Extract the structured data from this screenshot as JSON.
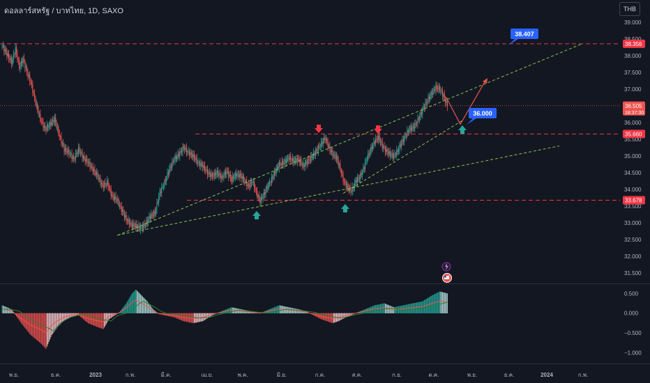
{
  "header": {
    "title": "ดอลลาร์สหรัฐ / บาทไทย, 1D, SAXO",
    "currency_button": "THB"
  },
  "colors": {
    "background": "#131722",
    "up": "#26a69a",
    "down": "#ef5350",
    "level_line": "#f23645",
    "trend_line": "#8bc34a",
    "callout": "#2962ff",
    "axis_text": "#b2b5be"
  },
  "chart_data": [
    {
      "type": "candlestick",
      "title": "ดอลลาร์สหรัฐ / บาทไทย",
      "ylim": [
        31.25,
        39.25
      ],
      "y_ticks": [
        "39.000",
        "38.500",
        "38.000",
        "37.500",
        "37.000",
        "36.500",
        "36.000",
        "35.500",
        "35.000",
        "34.500",
        "34.000",
        "33.500",
        "33.000",
        "32.500",
        "32.000",
        "31.500"
      ],
      "x_ticks": [
        "พ.ย.",
        "ธ.ค.",
        "2023",
        "ก.พ.",
        "มี.ค.",
        "เม.ย.",
        "พ.ค.",
        "มิ.ย.",
        "ก.ค.",
        "ส.ค.",
        "ก.ย.",
        "ต.ค.",
        "พ.ย.",
        "ธ.ค.",
        "2024",
        "ก.พ."
      ],
      "close_path": [
        [
          0,
          38.3
        ],
        [
          5,
          38.05
        ],
        [
          10,
          37.8
        ],
        [
          14,
          38.2
        ],
        [
          18,
          37.65
        ],
        [
          22,
          37.9
        ],
        [
          26,
          37.5
        ],
        [
          30,
          37.2
        ],
        [
          35,
          36.6
        ],
        [
          40,
          36.1
        ],
        [
          45,
          35.8
        ],
        [
          50,
          35.95
        ],
        [
          55,
          36.1
        ],
        [
          60,
          35.6
        ],
        [
          65,
          35.2
        ],
        [
          70,
          35.1
        ],
        [
          75,
          34.9
        ],
        [
          80,
          35.2
        ],
        [
          85,
          34.95
        ],
        [
          90,
          34.8
        ],
        [
          95,
          34.6
        ],
        [
          100,
          34.4
        ],
        [
          105,
          34.1
        ],
        [
          110,
          34.2
        ],
        [
          115,
          33.8
        ],
        [
          120,
          33.7
        ],
        [
          125,
          33.4
        ],
        [
          130,
          33.1
        ],
        [
          135,
          32.95
        ],
        [
          140,
          32.9
        ],
        [
          145,
          32.85
        ],
        [
          150,
          32.95
        ],
        [
          155,
          33.2
        ],
        [
          160,
          33.3
        ],
        [
          165,
          33.9
        ],
        [
          170,
          34.2
        ],
        [
          175,
          34.6
        ],
        [
          180,
          34.9
        ],
        [
          185,
          35.05
        ],
        [
          190,
          35.25
        ],
        [
          195,
          35.1
        ],
        [
          200,
          35.0
        ],
        [
          205,
          34.8
        ],
        [
          210,
          34.7
        ],
        [
          215,
          34.5
        ],
        [
          220,
          34.4
        ],
        [
          225,
          34.5
        ],
        [
          230,
          34.35
        ],
        [
          235,
          34.55
        ],
        [
          240,
          34.3
        ],
        [
          245,
          34.45
        ],
        [
          250,
          34.4
        ],
        [
          255,
          34.2
        ],
        [
          258,
          34.1
        ],
        [
          262,
          34.25
        ],
        [
          266,
          33.9
        ],
        [
          270,
          33.65
        ],
        [
          274,
          33.85
        ],
        [
          278,
          34.1
        ],
        [
          282,
          34.3
        ],
        [
          286,
          34.55
        ],
        [
          290,
          34.75
        ],
        [
          295,
          34.8
        ],
        [
          300,
          34.95
        ],
        [
          305,
          34.85
        ],
        [
          310,
          34.9
        ],
        [
          315,
          34.7
        ],
        [
          320,
          34.85
        ],
        [
          325,
          35.0
        ],
        [
          330,
          35.2
        ],
        [
          335,
          35.4
        ],
        [
          338,
          35.55
        ],
        [
          342,
          35.25
        ],
        [
          346,
          35.05
        ],
        [
          350,
          34.95
        ],
        [
          354,
          34.6
        ],
        [
          358,
          34.2
        ],
        [
          362,
          34.05
        ],
        [
          366,
          33.95
        ],
        [
          370,
          34.25
        ],
        [
          374,
          34.35
        ],
        [
          378,
          34.6
        ],
        [
          382,
          34.95
        ],
        [
          386,
          35.2
        ],
        [
          390,
          35.45
        ],
        [
          394,
          35.55
        ],
        [
          398,
          35.3
        ],
        [
          402,
          35.15
        ],
        [
          406,
          35.05
        ],
        [
          410,
          35.0
        ],
        [
          414,
          35.15
        ],
        [
          418,
          35.4
        ],
        [
          422,
          35.6
        ],
        [
          426,
          35.8
        ],
        [
          430,
          35.85
        ],
        [
          434,
          36.0
        ],
        [
          438,
          36.25
        ],
        [
          442,
          36.5
        ],
        [
          446,
          36.7
        ],
        [
          450,
          36.9
        ],
        [
          454,
          37.05
        ],
        [
          458,
          37.0
        ],
        [
          462,
          36.8
        ],
        [
          466,
          36.5
        ]
      ],
      "macd": [
        [
          0,
          0.2
        ],
        [
          10,
          0.1
        ],
        [
          20,
          -0.25
        ],
        [
          30,
          -0.55
        ],
        [
          40,
          -0.75
        ],
        [
          46,
          -0.9
        ],
        [
          52,
          -0.55
        ],
        [
          58,
          -0.35
        ],
        [
          64,
          -0.2
        ],
        [
          72,
          -0.1
        ],
        [
          80,
          -0.05
        ],
        [
          90,
          -0.25
        ],
        [
          100,
          -0.35
        ],
        [
          106,
          -0.4
        ],
        [
          112,
          -0.15
        ],
        [
          118,
          -0.05
        ],
        [
          122,
          0.0
        ],
        [
          130,
          0.25
        ],
        [
          136,
          0.5
        ],
        [
          140,
          0.6
        ],
        [
          146,
          0.45
        ],
        [
          152,
          0.3
        ],
        [
          158,
          0.1
        ],
        [
          164,
          -0.02
        ],
        [
          170,
          -0.05
        ],
        [
          180,
          -0.1
        ],
        [
          190,
          -0.2
        ],
        [
          200,
          -0.25
        ],
        [
          210,
          -0.2
        ],
        [
          220,
          -0.05
        ],
        [
          230,
          0.05
        ],
        [
          240,
          0.15
        ],
        [
          250,
          0.1
        ],
        [
          260,
          0.05
        ],
        [
          270,
          0.0
        ],
        [
          280,
          0.1
        ],
        [
          290,
          0.2
        ],
        [
          300,
          0.15
        ],
        [
          310,
          0.1
        ],
        [
          318,
          0.05
        ],
        [
          326,
          -0.05
        ],
        [
          334,
          -0.15
        ],
        [
          340,
          -0.2
        ],
        [
          346,
          -0.25
        ],
        [
          352,
          -0.2
        ],
        [
          360,
          -0.1
        ],
        [
          370,
          0.0
        ],
        [
          380,
          0.1
        ],
        [
          390,
          0.2
        ],
        [
          400,
          0.25
        ],
        [
          410,
          0.15
        ],
        [
          420,
          0.2
        ],
        [
          430,
          0.25
        ],
        [
          440,
          0.3
        ],
        [
          450,
          0.45
        ],
        [
          458,
          0.55
        ],
        [
          466,
          0.5
        ]
      ],
      "macd_y_ticks": [
        "0.500",
        "0.000",
        "−0.500",
        "−1.000"
      ],
      "macd_ylim": [
        -1.1,
        0.7
      ],
      "levels": [
        {
          "price": 38.356,
          "label": "38.356"
        },
        {
          "price": 35.66,
          "label": "35.660"
        },
        {
          "price": 33.678,
          "label": "33.678"
        }
      ],
      "last_price": {
        "label": "36.505",
        "countdown": "18:37:30",
        "price": 36.505
      },
      "callouts": [
        "38.407",
        "36.000"
      ]
    }
  ]
}
